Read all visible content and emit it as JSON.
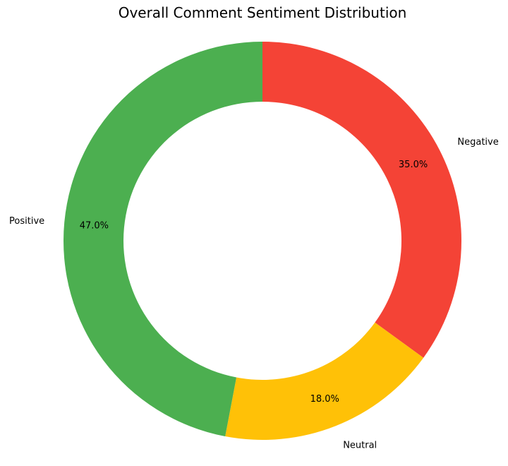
{
  "chart_data": {
    "type": "pie",
    "variant": "donut",
    "title": "Overall Comment Sentiment Distribution",
    "categories": [
      "Negative",
      "Neutral",
      "Positive"
    ],
    "values": [
      35.0,
      18.0,
      47.0
    ],
    "value_labels": [
      "35.0%",
      "18.0%",
      "47.0%"
    ],
    "colors": [
      "#f44336",
      "#ffc107",
      "#4caf50"
    ],
    "start_angle": "top",
    "direction": "clockwise",
    "legend": "none"
  }
}
